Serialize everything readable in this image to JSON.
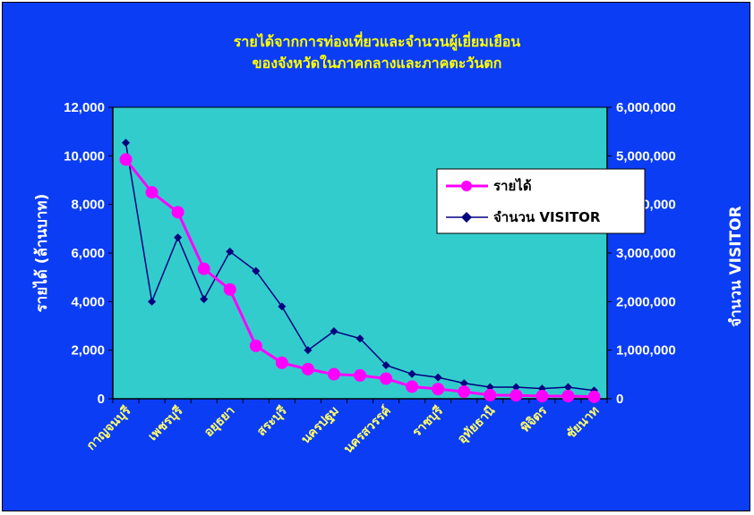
{
  "chart_data": {
    "type": "line",
    "title_line1": "รายได้จากการท่องเที่ยวและจำนวนผู้เยี่ยมเยือน",
    "title_line2": "ของจังหวัดในภาคกลางและภาคตะวันตก",
    "y_label_left": "รายได้ (ล้านบาท)",
    "y_label_right": "จำนวน VISITOR",
    "y_left": {
      "min": 0,
      "max": 12000,
      "ticks": [
        "0",
        "2,000",
        "4,000",
        "6,000",
        "8,000",
        "10,000",
        "12,000"
      ]
    },
    "y_right": {
      "min": 0,
      "max": 6000000,
      "ticks": [
        "0",
        "1,000,000",
        "2,000,000",
        "3,000,000",
        "4,000,000",
        "5,000,000",
        "6,000,000"
      ]
    },
    "categories_count": 19,
    "x_tick_labels": [
      {
        "index": 0,
        "label": "กาญจนบุรี"
      },
      {
        "index": 2,
        "label": "เพชรบุรี"
      },
      {
        "index": 4,
        "label": "อยุธยา"
      },
      {
        "index": 6,
        "label": "สระบุรี"
      },
      {
        "index": 8,
        "label": "นครปฐม"
      },
      {
        "index": 10,
        "label": "นครสวรรค์"
      },
      {
        "index": 12,
        "label": "ราชบุรี"
      },
      {
        "index": 14,
        "label": "อุทัยธานี"
      },
      {
        "index": 16,
        "label": "พิจิตร"
      },
      {
        "index": 18,
        "label": "ชัยนาท"
      }
    ],
    "series": [
      {
        "name": "รายได้",
        "axis": "left",
        "color": "#ff00ff",
        "values": [
          9850,
          8500,
          7680,
          5350,
          4500,
          2180,
          1480,
          1220,
          1010,
          960,
          830,
          500,
          400,
          290,
          150,
          140,
          110,
          110,
          80
        ]
      },
      {
        "name": "จำนวน VISITOR",
        "axis": "right",
        "color": "#000080",
        "values": [
          5270000,
          2000000,
          3320000,
          2050000,
          3030000,
          2630000,
          1900000,
          1000000,
          1390000,
          1240000,
          690000,
          510000,
          440000,
          320000,
          240000,
          240000,
          210000,
          240000,
          170000
        ]
      }
    ],
    "legend_placement": "right-inside",
    "grid": false,
    "colors": {
      "background": "#0b3df5",
      "plot_area": "#33cccc",
      "title": "#ffff00",
      "x_labels": "#ffff66",
      "axis_text": "#ffffff"
    }
  }
}
